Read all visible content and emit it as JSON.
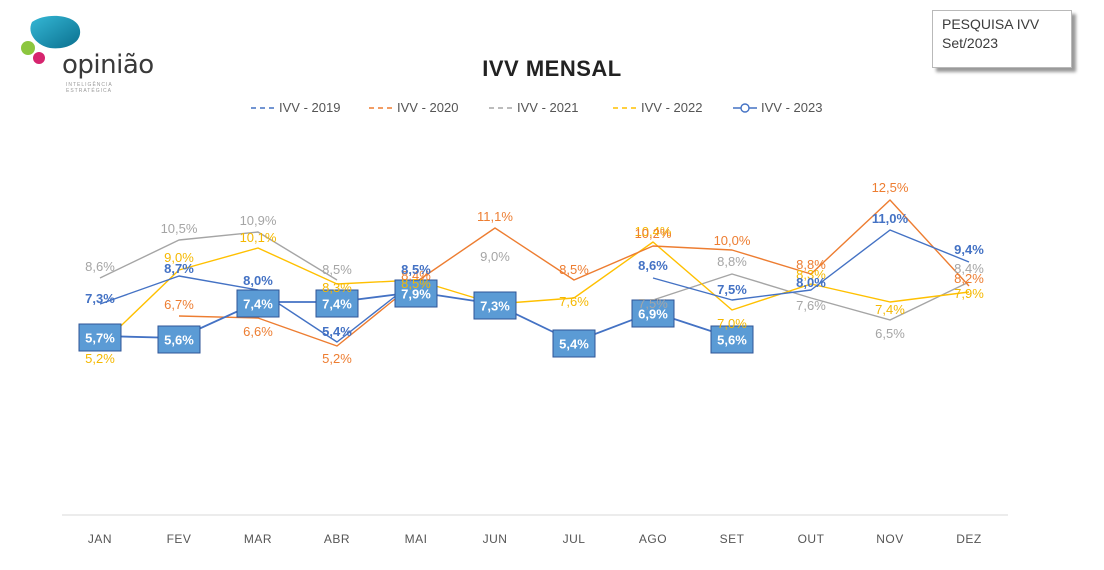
{
  "logo": {
    "text": "opinião",
    "subtext": "INTELIGÊNCIA ESTRATÉGICA"
  },
  "badge": {
    "line1": "PESQUISA IVV",
    "line2": "Set/2023"
  },
  "colors": {
    "ivv2019": "#4472c4",
    "ivv2020": "#ed7d31",
    "ivv2021": "#a5a5a5",
    "ivv2022": "#ffc000",
    "ivv2023": "#4472c4",
    "box2023": "#5b9bd5"
  },
  "chart_data": {
    "type": "line",
    "title": "IVV MENSAL",
    "categories": [
      "JAN",
      "FEV",
      "MAR",
      "ABR",
      "MAI",
      "JUN",
      "JUL",
      "AGO",
      "SET",
      "OUT",
      "NOV",
      "DEZ"
    ],
    "series": [
      {
        "name": "IVV - 2019",
        "values": [
          7.3,
          8.7,
          8.0,
          5.4,
          8.5,
          null,
          null,
          8.6,
          7.5,
          8.0,
          11.0,
          9.4
        ],
        "labels": [
          "7,3%",
          "8,7%",
          "8,0%",
          "5,4%",
          "8,5%",
          "",
          "",
          "8,6%",
          "7,5%",
          "8,0%",
          "11,0%",
          "9,4%"
        ]
      },
      {
        "name": "IVV - 2020",
        "values": [
          null,
          6.7,
          6.6,
          5.2,
          8.4,
          11.1,
          8.5,
          10.2,
          10.0,
          8.8,
          12.5,
          8.2
        ],
        "labels": [
          "",
          "6,7%",
          "6,6%",
          "5,2%",
          "8,4%",
          "11,1%",
          "8,5%",
          "10,2%",
          "10,0%",
          "8,8%",
          "12,5%",
          "8,2%"
        ]
      },
      {
        "name": "IVV - 2021",
        "values": [
          8.6,
          10.5,
          10.9,
          8.5,
          null,
          9.0,
          null,
          7.5,
          8.8,
          7.6,
          6.5,
          8.4
        ],
        "labels": [
          "8,6%",
          "10,5%",
          "10,9%",
          "8,5%",
          "",
          "9,0%",
          "",
          "7,5%",
          "8,8%",
          "7,6%",
          "6,5%",
          "8,4%"
        ]
      },
      {
        "name": "IVV - 2022",
        "values": [
          5.2,
          9.0,
          10.1,
          8.3,
          8.5,
          7.3,
          7.6,
          10.4,
          7.0,
          8.3,
          7.4,
          7.9
        ],
        "labels": [
          "5,2%",
          "9,0%",
          "10,1%",
          "8,3%",
          "8,5%",
          "",
          "7,6%",
          "10,4%",
          "7,0%",
          "8,3%",
          "7,4%",
          "7,9%"
        ]
      },
      {
        "name": "IVV - 2023",
        "values": [
          5.7,
          5.6,
          7.4,
          7.4,
          7.9,
          7.3,
          5.4,
          6.9,
          5.6,
          null,
          null,
          null
        ],
        "labels": [
          "5,7%",
          "5,6%",
          "7,4%",
          "7,4%",
          "7,9%",
          "7,3%",
          "5,4%",
          "6,9%",
          "5,6%",
          "",
          "",
          ""
        ]
      }
    ],
    "ylim": [
      0,
      14
    ],
    "grid": false,
    "legend_position": "top"
  }
}
